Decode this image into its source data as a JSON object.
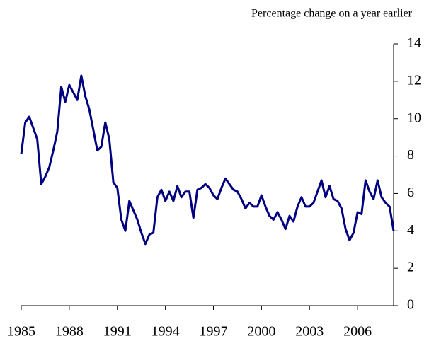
{
  "chart_data": {
    "type": "line",
    "subtitle": "Percentage change on a year earlier",
    "x": [
      1985,
      1985.25,
      1985.5,
      1985.75,
      1986,
      1986.25,
      1986.5,
      1986.75,
      1987,
      1987.25,
      1987.5,
      1987.75,
      1988,
      1988.25,
      1988.5,
      1988.75,
      1989,
      1989.25,
      1989.5,
      1989.75,
      1990,
      1990.25,
      1990.5,
      1990.75,
      1991,
      1991.25,
      1991.5,
      1991.75,
      1992,
      1992.25,
      1992.5,
      1992.75,
      1993,
      1993.25,
      1993.5,
      1993.75,
      1994,
      1994.25,
      1994.5,
      1994.75,
      1995,
      1995.25,
      1995.5,
      1995.75,
      1996,
      1996.25,
      1996.5,
      1996.75,
      1997,
      1997.25,
      1997.5,
      1997.75,
      1998,
      1998.25,
      1998.5,
      1998.75,
      1999,
      1999.25,
      1999.5,
      1999.75,
      2000,
      2000.25,
      2000.5,
      2000.75,
      2001,
      2001.25,
      2001.5,
      2001.75,
      2002,
      2002.25,
      2002.5,
      2002.75,
      2003,
      2003.25,
      2003.5,
      2003.75,
      2004,
      2004.25,
      2004.5,
      2004.75,
      2005,
      2005.25,
      2005.5,
      2005.75,
      2006,
      2006.25,
      2006.5,
      2006.75,
      2007,
      2007.25,
      2007.5,
      2007.75,
      2008,
      2008.25
    ],
    "values": [
      8.1,
      9.8,
      10.1,
      9.5,
      8.9,
      6.5,
      6.9,
      7.4,
      8.3,
      9.3,
      11.7,
      10.9,
      11.8,
      11.4,
      11.0,
      12.3,
      11.2,
      10.5,
      9.4,
      8.3,
      8.5,
      9.8,
      8.9,
      6.6,
      6.3,
      4.6,
      4.0,
      5.6,
      5.1,
      4.6,
      3.9,
      3.3,
      3.8,
      3.9,
      5.8,
      6.2,
      5.6,
      6.1,
      5.6,
      6.4,
      5.8,
      6.1,
      6.1,
      4.7,
      6.2,
      6.3,
      6.5,
      6.3,
      5.9,
      5.7,
      6.3,
      6.8,
      6.5,
      6.2,
      6.1,
      5.7,
      5.2,
      5.5,
      5.3,
      5.3,
      5.9,
      5.3,
      4.8,
      4.6,
      5.0,
      4.6,
      4.1,
      4.8,
      4.5,
      5.3,
      5.8,
      5.3,
      5.3,
      5.5,
      6.1,
      6.7,
      5.8,
      6.4,
      5.7,
      5.6,
      5.2,
      4.1,
      3.5,
      3.9,
      5.0,
      4.9,
      6.7,
      6.1,
      5.7,
      6.7,
      5.8,
      5.5,
      5.3,
      4.0
    ],
    "color": "#000080",
    "xlim": [
      1985,
      2008.25
    ],
    "xticks": [
      1985,
      1988,
      1991,
      1994,
      1997,
      2000,
      2003,
      2006
    ],
    "ylim": [
      0,
      14
    ],
    "yticks": [
      0,
      2,
      4,
      6,
      8,
      10,
      12,
      14
    ],
    "y_axis_side": "right"
  }
}
